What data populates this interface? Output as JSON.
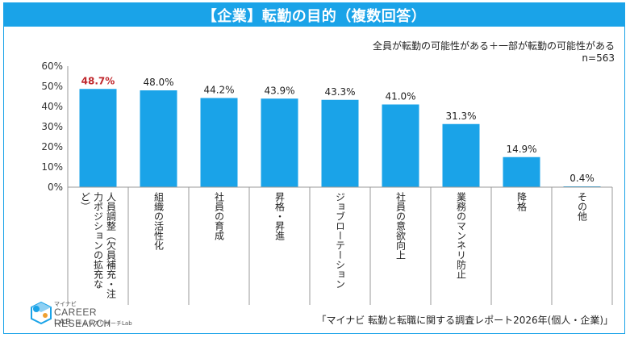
{
  "header": {
    "title": "【企業】転勤の目的（複数回答）",
    "note_line1": "全員が転勤の可能性がある＋一部が転勤の可能性がある",
    "note_line2": "n=563"
  },
  "footer": {
    "source": "「マイナビ 転勤と転職に関する調査レポート2026年(個人・企業)」",
    "logo": {
      "small": "マイナビ",
      "big": "CAREER RESEARCH",
      "lab": "LAB",
      "sub": "キャリアリサーチLab"
    }
  },
  "colors": {
    "bar": "#1aa3e8",
    "highlight_label": "#c0282d",
    "label": "#222222",
    "axis": "#999999"
  },
  "chart_data": {
    "type": "bar",
    "categories": [
      "人員調整（欠員補充・注力ポジションの拡充など）",
      "組織の活性化",
      "社員の育成",
      "昇格・昇進",
      "ジョブローテーション",
      "社員の意欲向上",
      "業務のマンネリ防止",
      "降格",
      "その他"
    ],
    "category_columns": [
      [
        "人員調整（欠員補充・注",
        "力ポジションの拡充な",
        "ど）"
      ],
      [
        "組織の活性化"
      ],
      [
        "社員の育成"
      ],
      [
        "昇格・昇進"
      ],
      [
        "ジョブローテーション"
      ],
      [
        "社員の意欲向上"
      ],
      [
        "業務のマンネリ防止"
      ],
      [
        "降格"
      ],
      [
        "その他"
      ]
    ],
    "values": [
      48.7,
      48.0,
      44.2,
      43.9,
      43.3,
      41.0,
      31.3,
      14.9,
      0.4
    ],
    "value_labels": [
      "48.7%",
      "48.0%",
      "44.2%",
      "43.9%",
      "43.3%",
      "41.0%",
      "31.3%",
      "14.9%",
      "0.4%"
    ],
    "highlight_index": 0,
    "ylim": [
      0,
      60
    ],
    "yticks": [
      0,
      10,
      20,
      30,
      40,
      50,
      60
    ],
    "ytick_labels": [
      "0%",
      "10%",
      "20%",
      "30%",
      "40%",
      "50%",
      "60%"
    ],
    "grid": false,
    "legend": "none",
    "xlabel": "",
    "ylabel": ""
  }
}
